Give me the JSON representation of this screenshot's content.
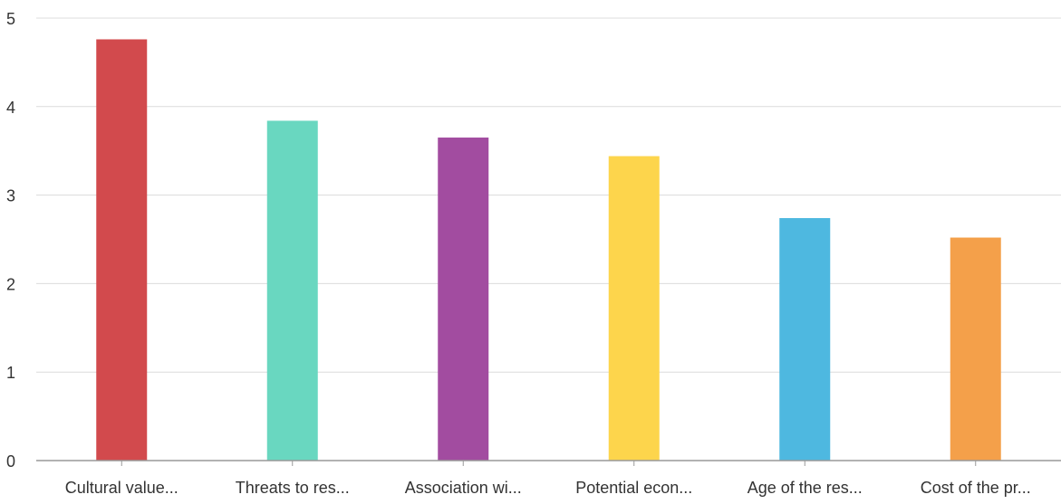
{
  "chart_data": {
    "type": "bar",
    "categories": [
      "Cultural value...",
      "Threats to res...",
      "Association wi...",
      "Potential econ...",
      "Age of the res...",
      "Cost of the pr..."
    ],
    "values": [
      4.76,
      3.84,
      3.65,
      3.44,
      2.74,
      2.52
    ],
    "colors": [
      "#d24a4d",
      "#69d7c0",
      "#a24ca0",
      "#fdd54c",
      "#4eb8e0",
      "#f4a04a"
    ],
    "ylim": [
      0,
      5
    ],
    "yticks": [
      0,
      1,
      2,
      3,
      4,
      5
    ],
    "title": "",
    "xlabel": "",
    "ylabel": "",
    "grid": true,
    "legend": "none"
  }
}
